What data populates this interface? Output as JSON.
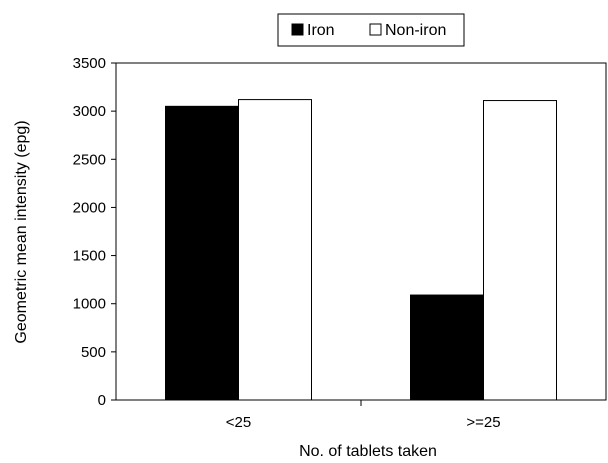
{
  "chart_data": {
    "type": "bar",
    "categories": [
      "<25",
      ">=25"
    ],
    "series": [
      {
        "name": "Iron",
        "values": [
          3050,
          1090
        ],
        "color": "#000000"
      },
      {
        "name": "Non-iron",
        "values": [
          3120,
          3110
        ],
        "color": "#ffffff"
      }
    ],
    "title": "",
    "xlabel": "No. of tablets taken",
    "ylabel": "Geometric mean intensity (epg)",
    "ylim": [
      0,
      3500
    ],
    "yticks": [
      0,
      500,
      1000,
      1500,
      2000,
      2500,
      3000,
      3500
    ],
    "grid": false,
    "legend_position": "top-center"
  }
}
